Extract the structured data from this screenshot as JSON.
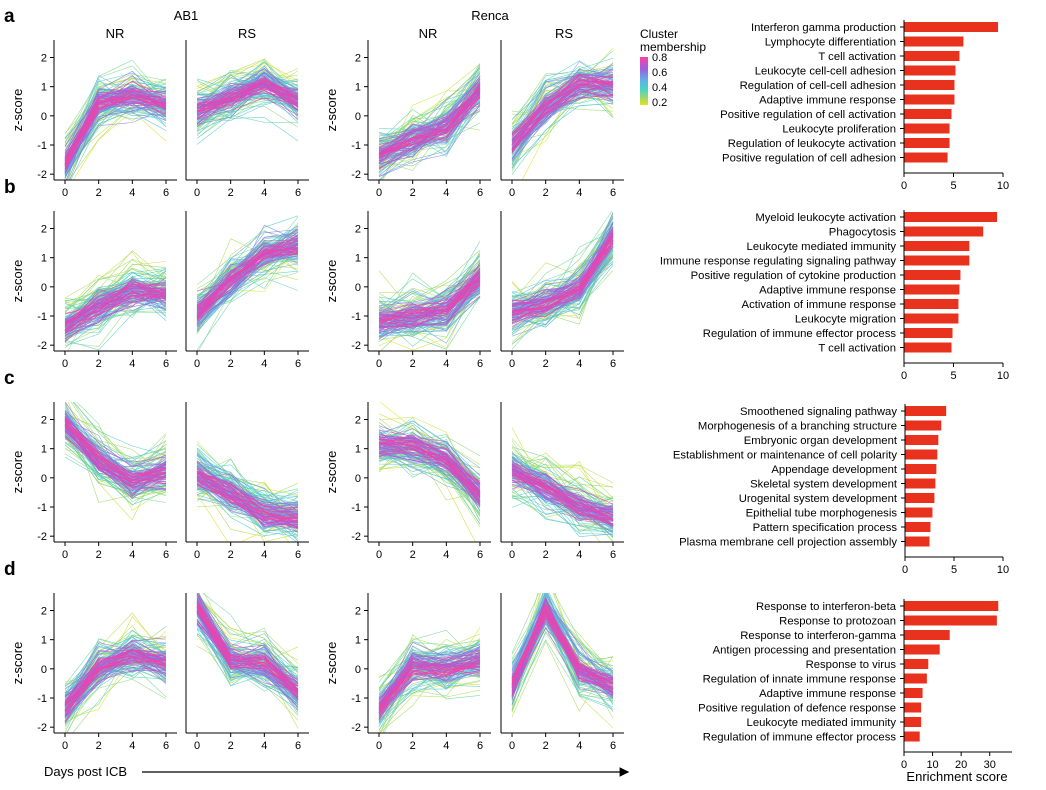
{
  "figure": {
    "group_labels": [
      "AB1",
      "Renca"
    ],
    "column_labels": [
      "NR",
      "RS",
      "NR",
      "RS"
    ],
    "line_ylabel": "z-score",
    "xaxis_caption": "Days post ICB",
    "enrichment_xlabel": "Enrichment score",
    "colorbar": {
      "title_line1": "Cluster",
      "title_line2": "membership",
      "ticks": [
        "0.8",
        "0.6",
        "0.4",
        "0.2"
      ],
      "colors": [
        "#ff3fa0",
        "#9b5fe0",
        "#5fb4e6",
        "#4ad4c4",
        "#9ed86a",
        "#e3e31a"
      ]
    },
    "bar_color": "#e8321e"
  },
  "chart_data": [
    {
      "type": "line",
      "panel": "a",
      "xticks": [
        "0",
        "2",
        "4",
        "6"
      ],
      "yticks": [
        "2",
        "1",
        "0",
        "-1",
        "-2"
      ],
      "x": [
        0,
        2,
        4,
        6
      ],
      "ylim": [
        -2.2,
        2.6
      ],
      "subplots": [
        {
          "group": "AB1",
          "condition": "NR",
          "mean_profile": [
            -1.7,
            0.4,
            0.7,
            0.4
          ]
        },
        {
          "group": "AB1",
          "condition": "RS",
          "mean_profile": [
            0.2,
            0.6,
            1.1,
            0.5
          ]
        },
        {
          "group": "Renca",
          "condition": "NR",
          "mean_profile": [
            -1.4,
            -0.8,
            -0.4,
            0.9
          ]
        },
        {
          "group": "Renca",
          "condition": "RS",
          "mean_profile": [
            -1.0,
            0.3,
            1.1,
            1.0
          ]
        }
      ]
    },
    {
      "type": "line",
      "panel": "b",
      "xticks": [
        "0",
        "2",
        "4",
        "6"
      ],
      "yticks": [
        "2",
        "1",
        "0",
        "-1",
        "-2"
      ],
      "x": [
        0,
        2,
        4,
        6
      ],
      "ylim": [
        -2.2,
        2.6
      ],
      "subplots": [
        {
          "group": "AB1",
          "condition": "NR",
          "mean_profile": [
            -1.4,
            -0.7,
            -0.1,
            -0.2
          ]
        },
        {
          "group": "AB1",
          "condition": "RS",
          "mean_profile": [
            -0.9,
            0.2,
            1.1,
            1.4
          ]
        },
        {
          "group": "Renca",
          "condition": "NR",
          "mean_profile": [
            -1.2,
            -1.0,
            -0.8,
            0.3
          ]
        },
        {
          "group": "Renca",
          "condition": "RS",
          "mean_profile": [
            -0.9,
            -0.6,
            -0.1,
            1.7
          ]
        }
      ]
    },
    {
      "type": "line",
      "panel": "c",
      "xticks": [
        "0",
        "2",
        "4",
        "6"
      ],
      "yticks": [
        "2",
        "1",
        "0",
        "-1",
        "-2"
      ],
      "x": [
        0,
        2,
        4,
        6
      ],
      "ylim": [
        -2.2,
        2.6
      ],
      "subplots": [
        {
          "group": "AB1",
          "condition": "NR",
          "mean_profile": [
            1.9,
            0.6,
            -0.1,
            0.2
          ]
        },
        {
          "group": "AB1",
          "condition": "RS",
          "mean_profile": [
            0.1,
            -0.5,
            -1.2,
            -1.4
          ]
        },
        {
          "group": "Renca",
          "condition": "NR",
          "mean_profile": [
            1.1,
            1.1,
            0.6,
            -0.6
          ]
        },
        {
          "group": "Renca",
          "condition": "RS",
          "mean_profile": [
            0.3,
            -0.3,
            -1.0,
            -1.4
          ]
        }
      ]
    },
    {
      "type": "line",
      "panel": "d",
      "xticks": [
        "0",
        "2",
        "4",
        "6"
      ],
      "yticks": [
        "2",
        "1",
        "0",
        "-1",
        "-2"
      ],
      "x": [
        0,
        2,
        4,
        6
      ],
      "ylim": [
        -2.2,
        2.6
      ],
      "subplots": [
        {
          "group": "AB1",
          "condition": "NR",
          "mean_profile": [
            -1.4,
            0.0,
            0.5,
            0.2
          ]
        },
        {
          "group": "AB1",
          "condition": "RS",
          "mean_profile": [
            2.1,
            0.3,
            0.2,
            -0.8
          ]
        },
        {
          "group": "Renca",
          "condition": "NR",
          "mean_profile": [
            -1.4,
            0.1,
            0.0,
            0.3
          ]
        },
        {
          "group": "Renca",
          "condition": "RS",
          "mean_profile": [
            -0.6,
            2.0,
            0.0,
            -0.6
          ]
        }
      ]
    },
    {
      "type": "bar",
      "panel": "a",
      "orientation": "horizontal",
      "xlim": [
        0,
        10
      ],
      "xticks": [
        "0",
        "5",
        "10"
      ],
      "categories": [
        "Interferon gamma production",
        "Lymphocyte differentiation",
        "T cell activation",
        "Leukocyte cell-cell adhesion",
        "Regulation of cell-cell adhesion",
        "Adaptive immune response",
        "Positive regulation of cell activation",
        "Leukocyte proliferation",
        "Regulation of leukocyte activation",
        "Positive regulation of cell adhesion"
      ],
      "values": [
        9.5,
        6.0,
        5.6,
        5.2,
        5.1,
        5.1,
        4.8,
        4.6,
        4.6,
        4.4
      ]
    },
    {
      "type": "bar",
      "panel": "b",
      "orientation": "horizontal",
      "xlim": [
        0,
        10
      ],
      "xticks": [
        "0",
        "5",
        "10"
      ],
      "categories": [
        "Myeloid leukocyte activation",
        "Phagocytosis",
        "Leukocyte mediated immunity",
        "Immune response regulating signaling pathway",
        "Positive regulation of cytokine production",
        "Adaptive immune response",
        "Activation of immune response",
        "Leukocyte migration",
        "Regulation of immune effector process",
        "T cell activation"
      ],
      "values": [
        9.4,
        8.0,
        6.6,
        6.6,
        5.7,
        5.6,
        5.5,
        5.5,
        4.9,
        4.8
      ]
    },
    {
      "type": "bar",
      "panel": "c",
      "orientation": "horizontal",
      "xlim": [
        0,
        10
      ],
      "xticks": [
        "0",
        "5",
        "10"
      ],
      "categories": [
        "Smoothened signaling pathway",
        "Morphogenesis of a branching structure",
        "Embryonic organ development",
        "Establishment or maintenance of cell polarity",
        "Appendage development",
        "Skeletal system development",
        "Urogenital system development",
        "Epithelial tube morphogenesis",
        "Pattern specification process",
        "Plasma membrane cell projection assembly"
      ],
      "values": [
        4.2,
        3.7,
        3.4,
        3.3,
        3.2,
        3.1,
        3.0,
        2.8,
        2.6,
        2.5
      ]
    },
    {
      "type": "bar",
      "panel": "d",
      "orientation": "horizontal",
      "xlim": [
        0,
        35
      ],
      "xticks": [
        "0",
        "10",
        "20",
        "30"
      ],
      "categories": [
        "Response to interferon-beta",
        "Response to protozoan",
        "Response to interferon-gamma",
        "Antigen processing and presentation",
        "Response to virus",
        "Regulation of innate immune response",
        "Adaptive immune response",
        "Positive regulation of defence response",
        "Leukocyte mediated immunity",
        "Regulation of immune effector process"
      ],
      "values": [
        33.0,
        32.5,
        16.0,
        12.5,
        8.5,
        8.0,
        6.5,
        6.0,
        6.0,
        5.5
      ]
    }
  ]
}
